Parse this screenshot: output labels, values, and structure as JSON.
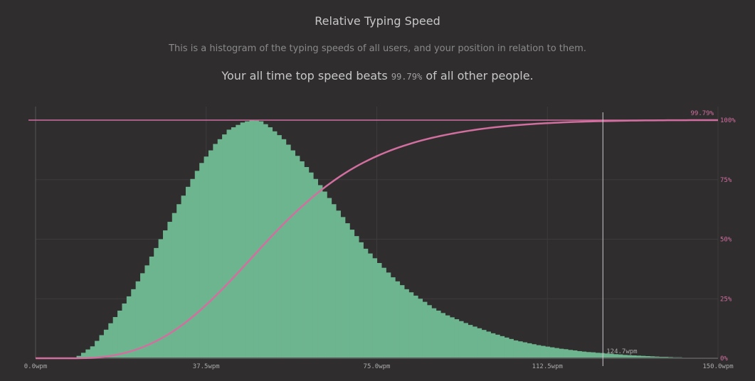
{
  "header": {
    "title": "Relative Typing Speed",
    "subtitle": "This is a histogram of the typing speeds of all users, and your position in relation to them.",
    "beats_prefix": "Your all time top speed beats",
    "beats_value": "99.79%",
    "beats_suffix": "of all other people."
  },
  "colors": {
    "background": "#2f2d2e",
    "histogram": "#6db58f",
    "cumulative": "#d16f9f",
    "marker": "#cccccc",
    "grid": "#3d3b3c"
  },
  "chart_data": {
    "type": "bar",
    "xlim": [
      0,
      150
    ],
    "x_ticks": [
      "0.0wpm",
      "37.5wpm",
      "75.0wpm",
      "112.5wpm",
      "150.0wpm"
    ],
    "x_tick_values": [
      0,
      37.5,
      75,
      112.5,
      150
    ],
    "y2_ticks": [
      "0%",
      "25%",
      "50%",
      "75%",
      "100%"
    ],
    "y2_tick_values": [
      0,
      25,
      50,
      75,
      100
    ],
    "grid": true,
    "bin_width": 1,
    "histogram_relative": [
      0,
      0,
      0,
      0,
      0,
      0,
      0,
      0,
      0,
      1,
      2.3,
      3.7,
      5,
      7.3,
      9.7,
      12,
      14.7,
      17.3,
      20,
      23,
      26,
      29,
      32.3,
      35.7,
      39,
      42.7,
      46.3,
      50,
      53.7,
      57.3,
      61,
      64.7,
      68.3,
      72,
      75.3,
      78.7,
      82,
      84.7,
      87.3,
      90,
      92,
      94,
      96,
      97,
      98,
      99,
      99.5,
      100,
      99.8,
      99.5,
      98.3,
      97,
      95.3,
      93.7,
      92,
      89.7,
      87.3,
      85,
      82.7,
      80.3,
      78,
      75.3,
      72.7,
      70,
      67.3,
      64.7,
      62,
      59.3,
      56.7,
      54,
      51.3,
      48.7,
      46,
      44,
      42,
      40,
      38,
      36,
      34,
      32.3,
      30.7,
      29,
      27.7,
      26.3,
      25,
      23.7,
      22.3,
      21,
      20,
      19,
      18,
      17.2,
      16.4,
      15.6,
      14.8,
      14,
      13.3,
      12.6,
      11.9,
      11.2,
      10.5,
      9.9,
      9.3,
      8.7,
      8.1,
      7.5,
      7.1,
      6.7,
      6.3,
      5.9,
      5.5,
      5.2,
      4.9,
      4.6,
      4.3,
      4,
      3.8,
      3.5,
      3.3,
      3,
      2.8,
      2.6,
      2.5,
      2.3,
      2.2,
      2,
      1.9,
      1.7,
      1.6,
      1.4,
      1.3,
      1.2,
      1.1,
      1,
      0.9,
      0.8,
      0.7,
      0.6,
      0.6,
      0.5,
      0.4,
      0.4,
      0.3,
      0.3,
      0.2,
      0.2,
      0.1,
      0.1,
      0.1,
      0
    ],
    "marker": {
      "x": 124.7,
      "label": "124.7wpm",
      "percentile_label": "99.79%"
    }
  }
}
